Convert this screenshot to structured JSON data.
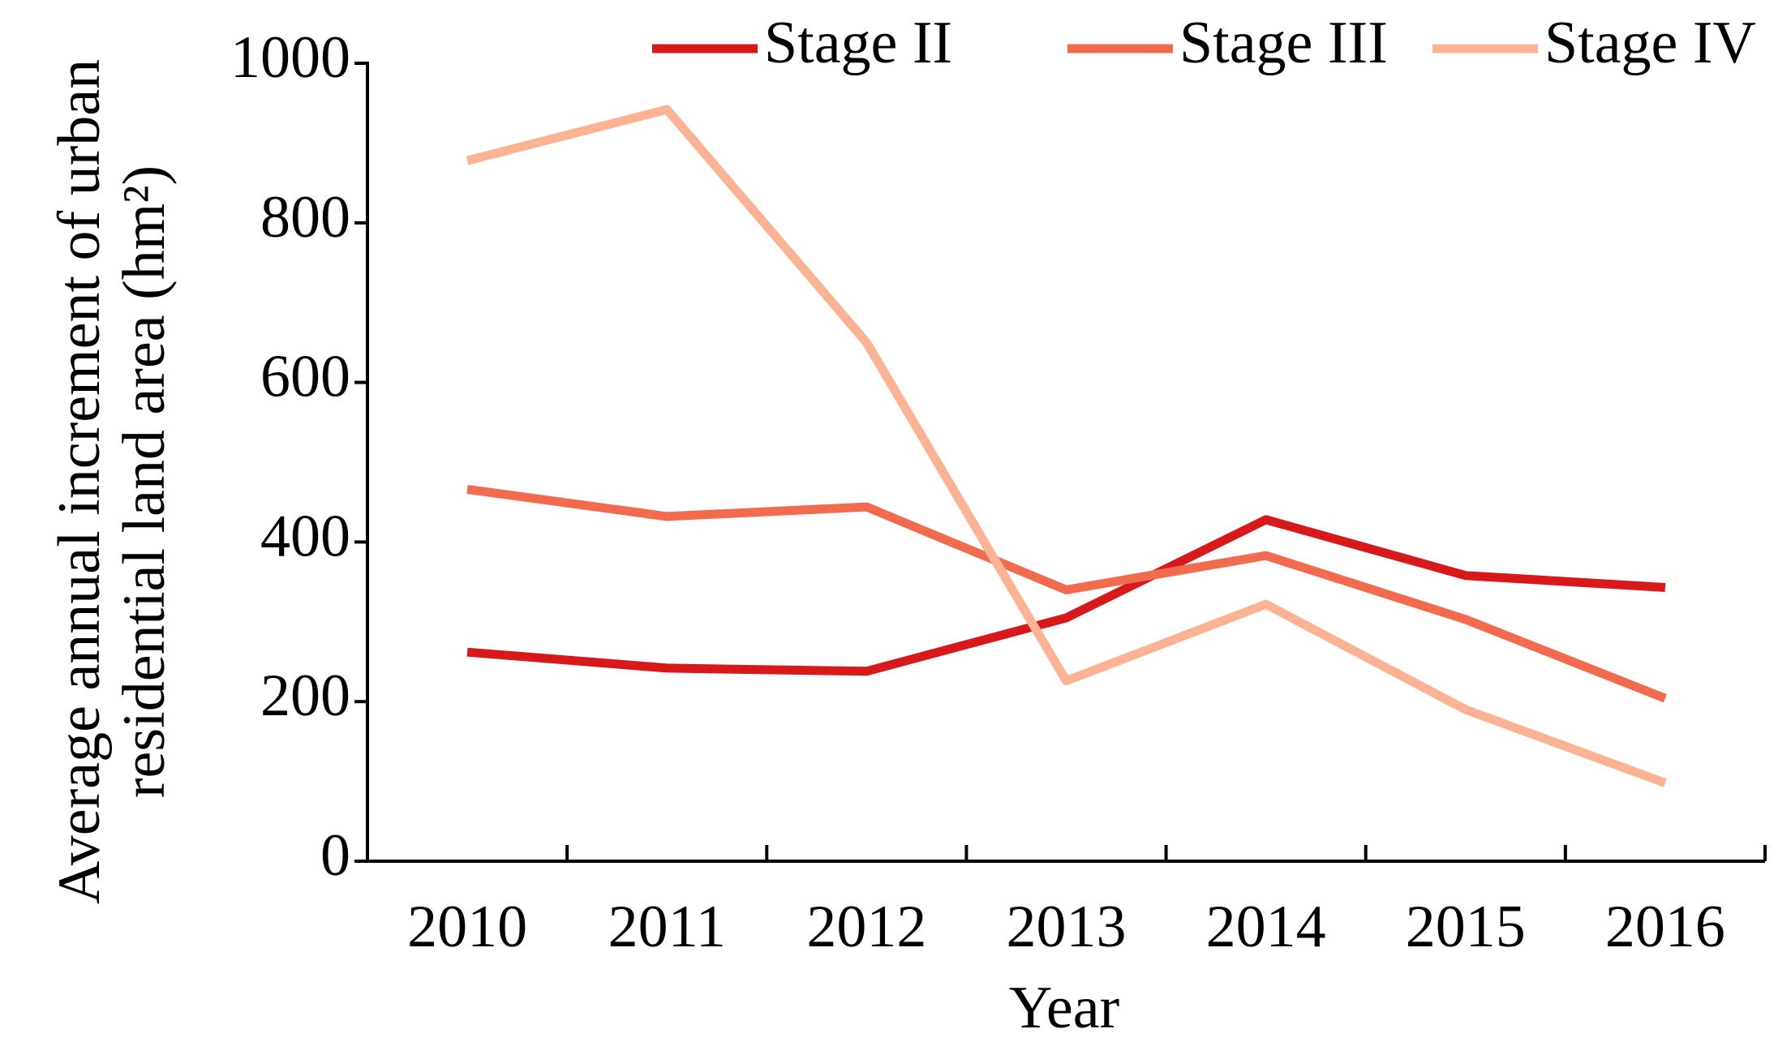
{
  "chart_data": {
    "type": "line",
    "ylabel": [
      "Average annual increment of urban",
      "residential land area (hm²)"
    ],
    "xlabel": "Year",
    "categories": [
      "2010",
      "2011",
      "2012",
      "2013",
      "2014",
      "2015",
      "2016"
    ],
    "series": [
      {
        "name": "Stage II",
        "color": "#d7191c",
        "values": [
          262,
          242,
          238,
          305,
          428,
          358,
          343
        ]
      },
      {
        "name": "Stage III",
        "color": "#f26b4f",
        "values": [
          466,
          432,
          444,
          340,
          383,
          303,
          204
        ]
      },
      {
        "name": "Stage IV",
        "color": "#fbb394",
        "values": [
          878,
          942,
          650,
          226,
          322,
          190,
          98
        ]
      }
    ],
    "ylim": [
      0,
      1000
    ],
    "yticks": [
      0,
      200,
      400,
      600,
      800,
      1000
    ],
    "grid": false,
    "legend": "top"
  }
}
